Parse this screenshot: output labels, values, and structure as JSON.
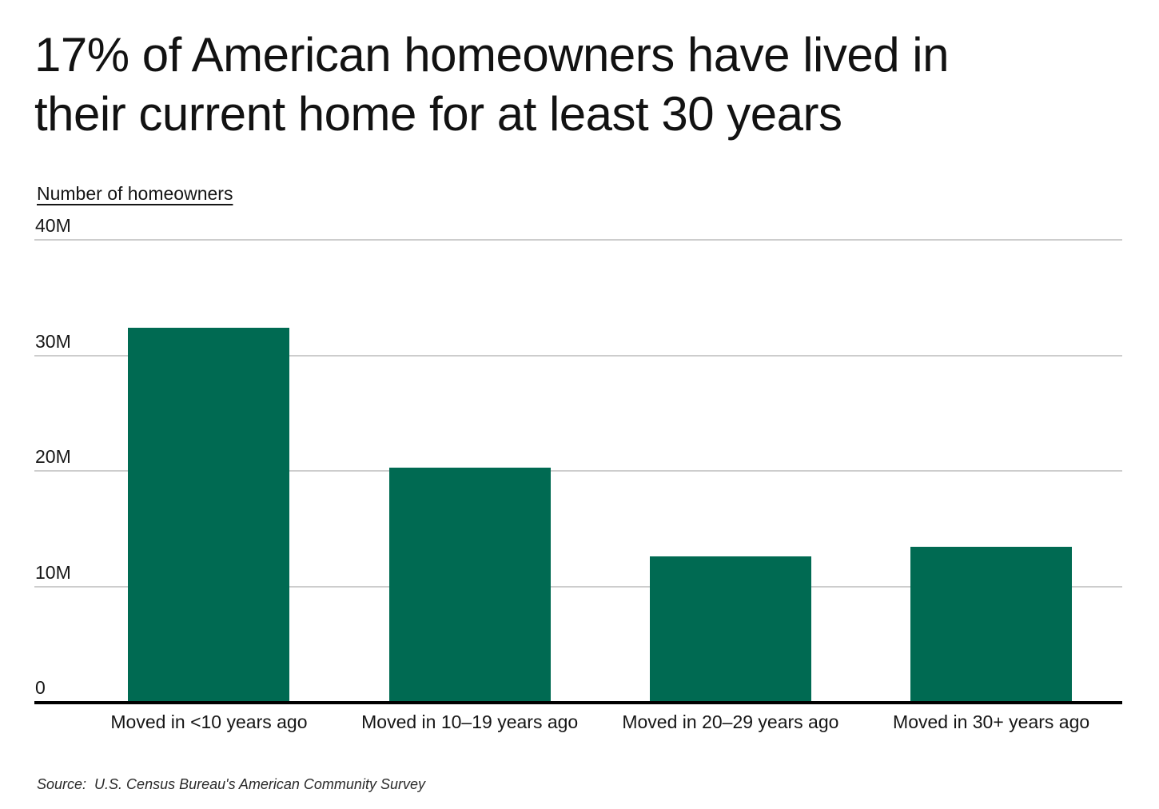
{
  "header": {
    "title": "17% of American homeowners have lived in their current home for at least 30 years",
    "title_lines": [
      "17% of American homeowners have lived in",
      "their current home for at least 30 years"
    ]
  },
  "chart": {
    "y_axis_title": "Number of homeowners"
  },
  "chart_data": {
    "type": "bar",
    "title": "17% of American homeowners have lived in their current home for at least 30 years",
    "xlabel": "",
    "ylabel": "Number of homeowners",
    "unit": "millions of homeowners",
    "categories": [
      "Moved in <10 years ago",
      "Moved in 10–19 years ago",
      "Moved in 20–29 years ago",
      "Moved in 30+ years ago"
    ],
    "values": [
      32.4,
      20.3,
      12.6,
      13.4
    ],
    "ylim": [
      0,
      40
    ],
    "yticks": [
      {
        "value": 40,
        "label": "40M"
      },
      {
        "value": 30,
        "label": "30M"
      },
      {
        "value": 20,
        "label": "20M"
      },
      {
        "value": 10,
        "label": "10M"
      },
      {
        "value": 0,
        "label": "0"
      }
    ],
    "grid": true,
    "legend": false,
    "bar_color": "#006a52",
    "gridline_color": "#cdcdcd",
    "axis_color": "#000000",
    "source": "Source:  U.S. Census Bureau's American Community Survey"
  },
  "footer": {
    "source_label": "Source:",
    "source_text": "U.S. Census Bureau's American Community Survey"
  },
  "colors": {
    "bar": "#006a52",
    "gridline": "#cdcdcd",
    "axis": "#000000",
    "text": "#161616"
  }
}
